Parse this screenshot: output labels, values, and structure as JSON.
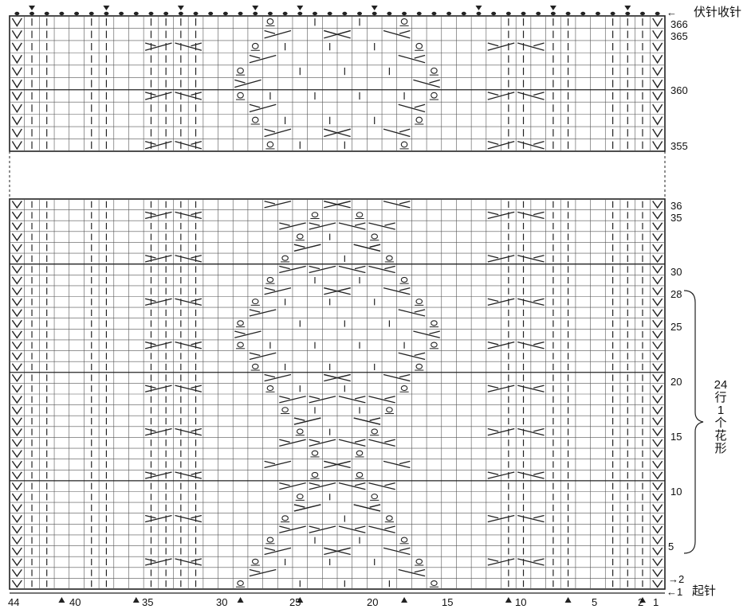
{
  "labels": {
    "bind_off": "伏针收针",
    "cast_on": "起针",
    "row_arrow_1": "1",
    "row_arrow_2": "2",
    "repeat_count": "24",
    "repeat_unit": "行",
    "repeat_one": "1",
    "repeat_ge": "个",
    "repeat_hua": "花",
    "repeat_xing": "形"
  },
  "top_rows": [
    "366",
    "365",
    "360",
    "355"
  ],
  "bottom_rows": [
    "36",
    "35",
    "30",
    "28",
    "25",
    "20",
    "15",
    "10",
    "5"
  ],
  "stitch_numbers": [
    "44",
    "40",
    "35",
    "30",
    "25",
    "20",
    "15",
    "10",
    "5",
    "2",
    "1"
  ],
  "grid": {
    "stitches": 44,
    "top_block_rows": 11,
    "bottom_block_rows": 36
  },
  "colors": {
    "line": "#222222",
    "grid": "#555555",
    "paper": "#ffffff"
  },
  "symbols": [
    "slip-stitch-v",
    "knit-bar",
    "twisted-loop",
    "cable-cross-left",
    "cable-cross-right",
    "bind-off-dot",
    "marker-triangle"
  ]
}
